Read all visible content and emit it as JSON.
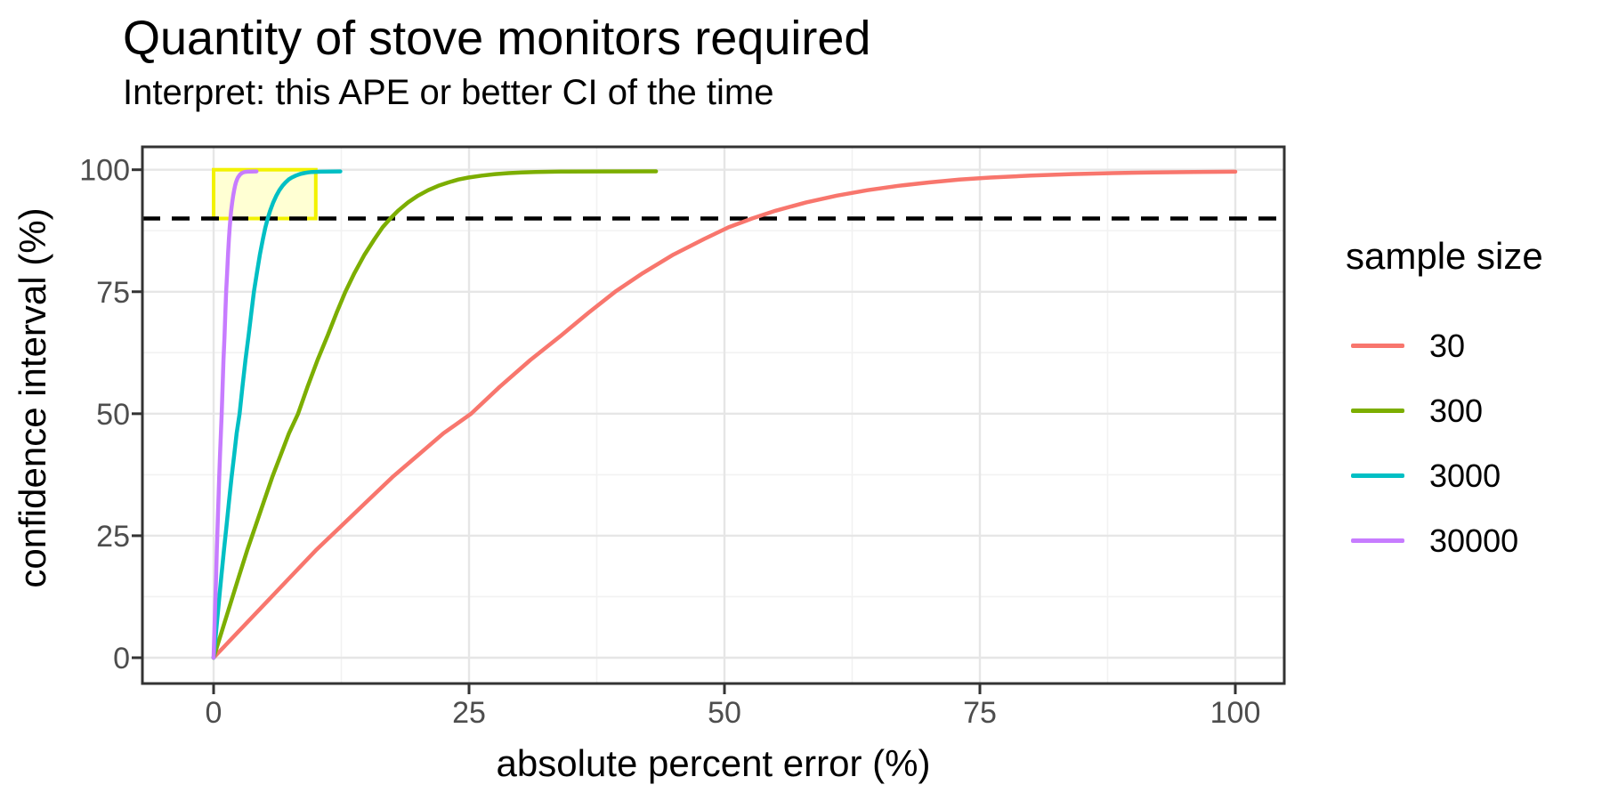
{
  "header": {
    "title": "Quantity of stove monitors required",
    "subtitle": "Interpret: this APE or better CI of the time"
  },
  "axes": {
    "x_label": "absolute percent error (%)",
    "y_label": "confidence interval (%)"
  },
  "legend": {
    "title": "sample size",
    "entries": [
      "30",
      "300",
      "3000",
      "30000"
    ]
  },
  "colors": {
    "series_30": "#F8766D",
    "series_300": "#7CAE00",
    "series_3000": "#00BFC4",
    "series_30000": "#C77CFF",
    "highlight_fill": "#FFFF9E",
    "highlight_border": "#F2F200",
    "threshold_line": "#000000",
    "grid_major": "#E6E6E6",
    "grid_minor": "#F2F2F2",
    "panel_border": "#333333",
    "tick_label": "#4D4D4D"
  },
  "chart_data": {
    "type": "line",
    "title": "Quantity of stove monitors required",
    "subtitle": "Interpret: this APE or better CI of the time",
    "xlabel": "absolute percent error (%)",
    "ylabel": "confidence interval (%)",
    "xlim": [
      -7,
      105
    ],
    "ylim": [
      -5,
      105
    ],
    "x_ticks": [
      0,
      25,
      50,
      75,
      100
    ],
    "y_ticks": [
      0,
      25,
      50,
      75,
      100
    ],
    "x_minor_ticks": [
      12.5,
      37.5,
      62.5,
      87.5
    ],
    "y_minor_ticks": [
      12.5,
      37.5,
      62.5,
      87.5
    ],
    "grid": true,
    "legend_title": "sample size",
    "legend_position": "right",
    "annotations": {
      "threshold_hline": {
        "y": 90,
        "style": "dashed",
        "color": "#000000"
      },
      "target_rect": {
        "x0": 0,
        "x1": 10,
        "y0": 90,
        "y1": 100,
        "fill": "#FFFF9E",
        "stroke": "#F2F200",
        "meaning": "target zone: APE <= 10% at CI >= 90%"
      }
    },
    "series": [
      {
        "name": "30",
        "color": "#F8766D",
        "points": [
          [
            0,
            0
          ],
          [
            2.5,
            5.5
          ],
          [
            5,
            11
          ],
          [
            7.5,
            16.5
          ],
          [
            10,
            22
          ],
          [
            12.5,
            27
          ],
          [
            15,
            32
          ],
          [
            17.5,
            37
          ],
          [
            20,
            41.5
          ],
          [
            22.5,
            46
          ],
          [
            25.2,
            50
          ],
          [
            28,
            55.5
          ],
          [
            31,
            61
          ],
          [
            34,
            66
          ],
          [
            36.7,
            70.7
          ],
          [
            39.3,
            75
          ],
          [
            42,
            78.8
          ],
          [
            45,
            82.6
          ],
          [
            48,
            85.8
          ],
          [
            50.4,
            88.2
          ],
          [
            52.7,
            90
          ],
          [
            55,
            91.6
          ],
          [
            58,
            93.3
          ],
          [
            61,
            94.7
          ],
          [
            64,
            95.8
          ],
          [
            67,
            96.7
          ],
          [
            70,
            97.4
          ],
          [
            73,
            98
          ],
          [
            76,
            98.4
          ],
          [
            80,
            98.8
          ],
          [
            84,
            99.1
          ],
          [
            88,
            99.3
          ],
          [
            92,
            99.45
          ],
          [
            96,
            99.55
          ],
          [
            100,
            99.6
          ]
        ]
      },
      {
        "name": "300",
        "color": "#7CAE00",
        "points": [
          [
            0,
            0
          ],
          [
            0.82,
            5.5
          ],
          [
            1.64,
            11
          ],
          [
            2.46,
            16.5
          ],
          [
            3.28,
            22
          ],
          [
            4.1,
            27
          ],
          [
            4.92,
            32
          ],
          [
            5.74,
            37
          ],
          [
            6.56,
            41.5
          ],
          [
            7.38,
            46
          ],
          [
            8.27,
            50
          ],
          [
            9.19,
            55.5
          ],
          [
            10.17,
            61
          ],
          [
            11.16,
            66
          ],
          [
            12.04,
            70.7
          ],
          [
            12.9,
            75
          ],
          [
            13.78,
            78.8
          ],
          [
            14.77,
            82.6
          ],
          [
            15.75,
            85.8
          ],
          [
            16.54,
            88.2
          ],
          [
            17.3,
            90
          ],
          [
            18.05,
            91.6
          ],
          [
            19.03,
            93.3
          ],
          [
            20.02,
            94.7
          ],
          [
            21,
            95.8
          ],
          [
            21.99,
            96.7
          ],
          [
            22.97,
            97.4
          ],
          [
            23.96,
            98
          ],
          [
            24.94,
            98.4
          ],
          [
            26.25,
            98.8
          ],
          [
            27.57,
            99.1
          ],
          [
            28.88,
            99.3
          ],
          [
            30.19,
            99.45
          ],
          [
            31.5,
            99.55
          ],
          [
            34,
            99.62
          ],
          [
            38,
            99.66
          ],
          [
            43.3,
            99.68
          ]
        ]
      },
      {
        "name": "3000",
        "color": "#00BFC4",
        "points": [
          [
            0,
            0
          ],
          [
            0.25,
            5.5
          ],
          [
            0.5,
            11
          ],
          [
            0.75,
            16.5
          ],
          [
            1.01,
            22
          ],
          [
            1.26,
            27
          ],
          [
            1.51,
            32
          ],
          [
            1.76,
            37
          ],
          [
            2.01,
            41.5
          ],
          [
            2.26,
            46
          ],
          [
            2.54,
            50
          ],
          [
            2.82,
            55.5
          ],
          [
            3.12,
            61
          ],
          [
            3.42,
            66
          ],
          [
            3.69,
            70.7
          ],
          [
            3.95,
            75
          ],
          [
            4.23,
            78.8
          ],
          [
            4.53,
            82.6
          ],
          [
            4.83,
            85.8
          ],
          [
            5.07,
            88.2
          ],
          [
            5.3,
            90
          ],
          [
            5.53,
            91.6
          ],
          [
            5.84,
            93.3
          ],
          [
            6.14,
            94.7
          ],
          [
            6.44,
            95.8
          ],
          [
            6.74,
            96.7
          ],
          [
            7.04,
            97.4
          ],
          [
            7.34,
            98
          ],
          [
            7.65,
            98.4
          ],
          [
            8.05,
            98.8
          ],
          [
            8.45,
            99.1
          ],
          [
            8.85,
            99.3
          ],
          [
            9.26,
            99.45
          ],
          [
            9.66,
            99.55
          ],
          [
            10.5,
            99.6
          ],
          [
            11.4,
            99.64
          ],
          [
            12.4,
            99.66
          ]
        ]
      },
      {
        "name": "30000",
        "color": "#C77CFF",
        "points": [
          [
            0,
            0
          ],
          [
            0.08,
            5.5
          ],
          [
            0.16,
            11
          ],
          [
            0.24,
            16.5
          ],
          [
            0.31,
            22
          ],
          [
            0.39,
            27
          ],
          [
            0.47,
            32
          ],
          [
            0.55,
            37
          ],
          [
            0.63,
            41.5
          ],
          [
            0.71,
            46
          ],
          [
            0.79,
            50
          ],
          [
            0.88,
            55.5
          ],
          [
            0.97,
            61
          ],
          [
            1.07,
            66
          ],
          [
            1.15,
            70.7
          ],
          [
            1.23,
            75
          ],
          [
            1.32,
            78.8
          ],
          [
            1.41,
            82.6
          ],
          [
            1.5,
            85.8
          ],
          [
            1.58,
            88.2
          ],
          [
            1.65,
            90
          ],
          [
            1.72,
            91.6
          ],
          [
            1.82,
            93.3
          ],
          [
            1.92,
            94.7
          ],
          [
            2.01,
            95.8
          ],
          [
            2.1,
            96.7
          ],
          [
            2.19,
            97.4
          ],
          [
            2.29,
            98
          ],
          [
            2.38,
            98.4
          ],
          [
            2.51,
            98.8
          ],
          [
            2.63,
            99.1
          ],
          [
            2.77,
            99.3
          ],
          [
            2.9,
            99.45
          ],
          [
            3.03,
            99.55
          ],
          [
            3.3,
            99.6
          ],
          [
            3.7,
            99.64
          ],
          [
            4.2,
            99.66
          ]
        ]
      }
    ]
  }
}
